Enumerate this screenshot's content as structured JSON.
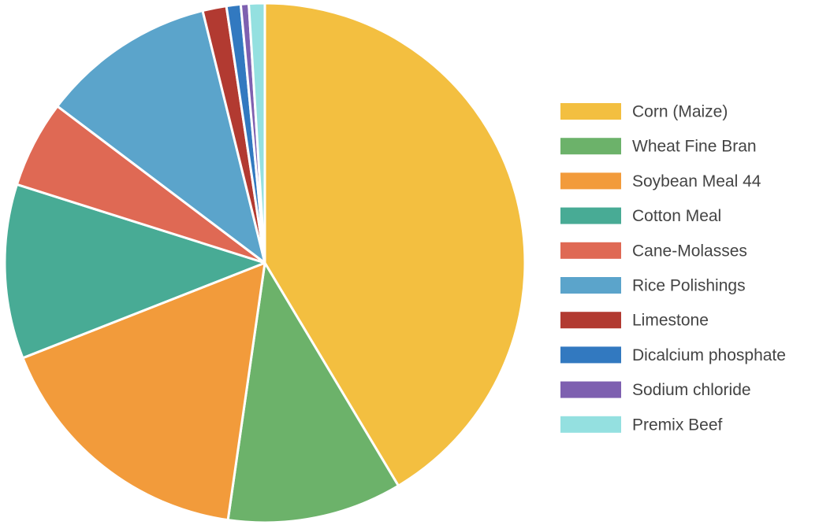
{
  "chart_data": {
    "type": "pie",
    "title": "",
    "legend_position": "right",
    "start_angle_deg": 0,
    "direction": "clockwise",
    "slices": [
      {
        "label": "Corn (Maize)",
        "value": 42.0,
        "color": "#F3BF40"
      },
      {
        "label": "Wheat Fine Bran",
        "value": 11.0,
        "color": "#6CB26A"
      },
      {
        "label": "Soybean Meal 44",
        "value": 17.0,
        "color": "#F29B3B"
      },
      {
        "label": "Cotton Meal",
        "value": 11.0,
        "color": "#48AB95"
      },
      {
        "label": "Cane-Molasses",
        "value": 5.5,
        "color": "#DF6954"
      },
      {
        "label": "Rice Polishings",
        "value": 11.0,
        "color": "#5BA4CB"
      },
      {
        "label": "Limestone",
        "value": 1.5,
        "color": "#B23A31"
      },
      {
        "label": "Dicalcium phosphate",
        "value": 0.9,
        "color": "#3279C0"
      },
      {
        "label": "Sodium chloride",
        "value": 0.5,
        "color": "#7E60B0"
      },
      {
        "label": "Premix Beef",
        "value": 1.0,
        "color": "#94E0E0"
      }
    ]
  }
}
